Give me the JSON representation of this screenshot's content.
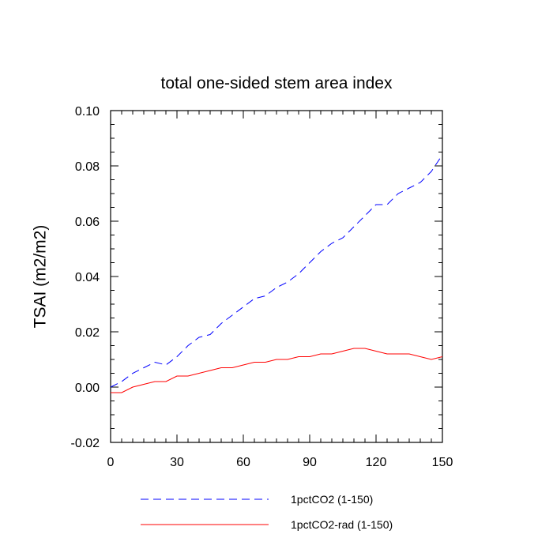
{
  "chart_data": {
    "type": "line",
    "title": "total one-sided stem area index",
    "xlabel": "",
    "ylabel": "TSAI  (m2/m2)",
    "xlim": [
      0,
      150
    ],
    "ylim": [
      -0.02,
      0.1
    ],
    "xticks": [
      0,
      30,
      60,
      90,
      120,
      150
    ],
    "xtick_labels": [
      "0",
      "30",
      "60",
      "90",
      "120",
      "150"
    ],
    "yticks": [
      -0.02,
      0.0,
      0.02,
      0.04,
      0.06,
      0.08,
      0.1
    ],
    "ytick_labels": [
      "-0.02",
      "0.00",
      "0.02",
      "0.04",
      "0.06",
      "0.08",
      "0.10"
    ],
    "grid": false,
    "legend_position": "bottom",
    "series": [
      {
        "name": "1pctCO2 (1-150)",
        "color": "#0000ff",
        "linestyle": "dashed",
        "x": [
          0,
          5,
          10,
          15,
          20,
          25,
          30,
          35,
          40,
          45,
          50,
          55,
          60,
          65,
          70,
          75,
          80,
          85,
          90,
          95,
          100,
          105,
          110,
          115,
          120,
          125,
          130,
          135,
          140,
          145,
          150
        ],
        "values": [
          0.0,
          0.002,
          0.005,
          0.007,
          0.009,
          0.008,
          0.011,
          0.015,
          0.018,
          0.019,
          0.023,
          0.026,
          0.029,
          0.032,
          0.033,
          0.036,
          0.038,
          0.041,
          0.045,
          0.049,
          0.052,
          0.054,
          0.058,
          0.062,
          0.066,
          0.066,
          0.07,
          0.072,
          0.074,
          0.078,
          0.084
        ]
      },
      {
        "name": "1pctCO2-rad (1-150)",
        "color": "#ff0000",
        "linestyle": "solid",
        "x": [
          0,
          5,
          10,
          15,
          20,
          25,
          30,
          35,
          40,
          45,
          50,
          55,
          60,
          65,
          70,
          75,
          80,
          85,
          90,
          95,
          100,
          105,
          110,
          115,
          120,
          125,
          130,
          135,
          140,
          145,
          150
        ],
        "values": [
          -0.002,
          -0.002,
          0.0,
          0.001,
          0.002,
          0.002,
          0.004,
          0.004,
          0.005,
          0.006,
          0.007,
          0.007,
          0.008,
          0.009,
          0.009,
          0.01,
          0.01,
          0.011,
          0.011,
          0.012,
          0.012,
          0.013,
          0.014,
          0.014,
          0.013,
          0.012,
          0.012,
          0.012,
          0.011,
          0.01,
          0.011
        ]
      }
    ]
  }
}
